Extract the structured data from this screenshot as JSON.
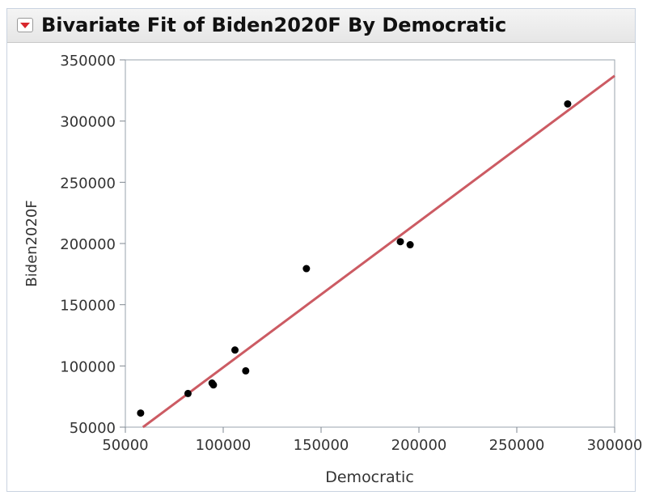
{
  "report": {
    "title": "Bivariate Fit of Biden2020F By Democratic"
  },
  "colors": {
    "fit_line": "#cc5b63",
    "points": "#000000",
    "disclosure_icon": "#d8272d"
  },
  "icons": {
    "disclosure": "red-triangle-menu-icon"
  },
  "chart_data": {
    "type": "scatter",
    "title": "Bivariate Fit of Biden2020F By Democratic",
    "xlabel": "Democratic",
    "ylabel": "Biden2020F",
    "xlim": [
      50000,
      300000
    ],
    "ylim": [
      50000,
      350000
    ],
    "xticks": [
      50000,
      100000,
      150000,
      200000,
      250000,
      300000
    ],
    "yticks": [
      50000,
      100000,
      150000,
      200000,
      250000,
      300000,
      350000
    ],
    "xtick_labels": [
      "50000",
      "100000",
      "150000",
      "200000",
      "250000",
      "300000"
    ],
    "ytick_labels": [
      "50000",
      "100000",
      "150000",
      "200000",
      "250000",
      "300000",
      "350000"
    ],
    "grid": false,
    "legend": "none",
    "points": [
      {
        "x": 57800,
        "y": 61500
      },
      {
        "x": 82000,
        "y": 77500
      },
      {
        "x": 94300,
        "y": 86000
      },
      {
        "x": 95000,
        "y": 84500
      },
      {
        "x": 106000,
        "y": 113000
      },
      {
        "x": 111500,
        "y": 96000
      },
      {
        "x": 142500,
        "y": 179500
      },
      {
        "x": 190500,
        "y": 201500
      },
      {
        "x": 195500,
        "y": 199000
      },
      {
        "x": 276000,
        "y": 314000
      }
    ],
    "fit_line": {
      "type": "linear",
      "from": {
        "x": 59000,
        "y": 50000
      },
      "to": {
        "x": 300000,
        "y": 337000
      }
    }
  }
}
